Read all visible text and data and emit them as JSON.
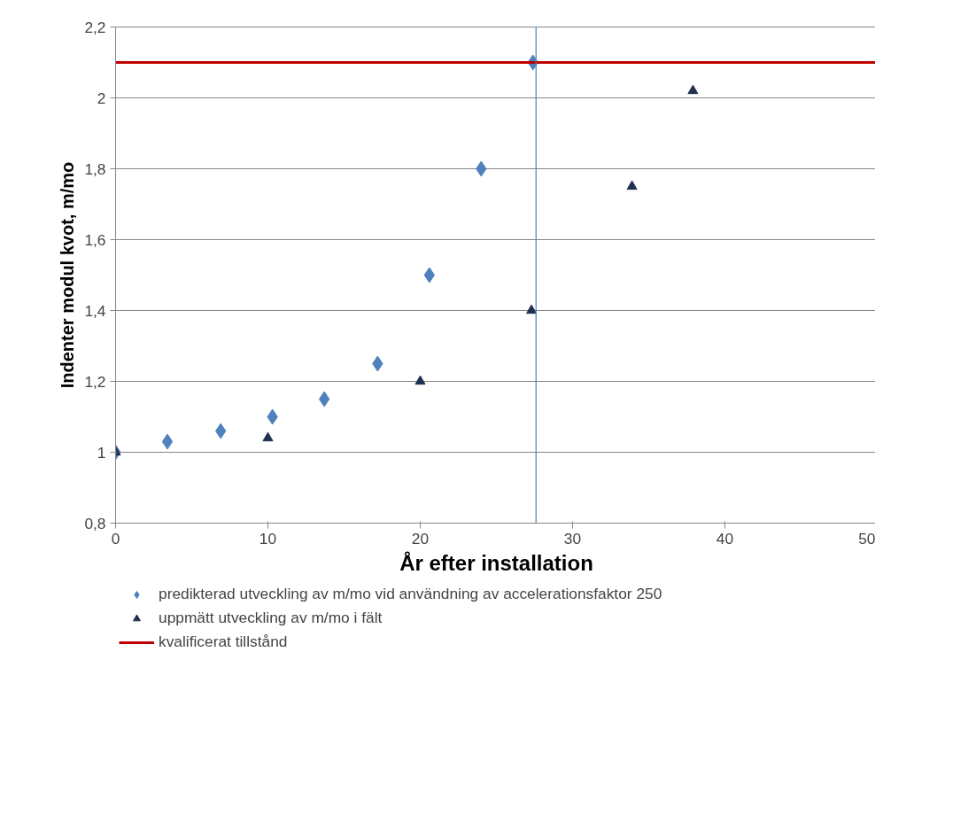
{
  "chart_data": {
    "type": "scatter",
    "xlabel": "År efter installation",
    "ylabel": "Indenter modul kvot, m/mo",
    "xlim": [
      0,
      50
    ],
    "xticks": [
      0,
      10,
      20,
      30,
      40,
      50
    ],
    "ylim": [
      0.8,
      2.2
    ],
    "yticks": [
      {
        "value": 0.8,
        "label": "0,8"
      },
      1,
      {
        "value": 1.2,
        "label": "1,2"
      },
      {
        "value": 1.4,
        "label": "1,4"
      },
      {
        "value": 1.6,
        "label": "1,6"
      },
      {
        "value": 1.8,
        "label": "1,8"
      },
      2,
      {
        "value": 2.2,
        "label": "2,2"
      }
    ],
    "grid": "y",
    "legend": "bottom",
    "series": [
      {
        "name": "predikterad utveckling av m/mo vid användning av accelerationsfaktor 250",
        "color": "#4f81bd",
        "marker": "diamond",
        "x": [
          0,
          3.4,
          6.9,
          10.3,
          13.7,
          17.2,
          20.6,
          24.0,
          27.4
        ],
        "values": [
          1.0,
          1.03,
          1.06,
          1.1,
          1.15,
          1.25,
          1.5,
          1.8,
          2.1
        ]
      },
      {
        "name": "uppmätt utveckling av m/mo i fält",
        "color": "#1f3050",
        "marker": "triangle",
        "x": [
          0,
          10.0,
          20.0,
          27.3,
          33.9,
          37.9
        ],
        "values": [
          1.0,
          1.04,
          1.2,
          1.4,
          1.75,
          2.02
        ]
      },
      {
        "name": "kvalificerat tillstånd",
        "type": "line",
        "color": "#c00000",
        "marker": "none",
        "x": [
          0,
          50
        ],
        "values": [
          2.1,
          2.1
        ]
      }
    ],
    "ref_lines": [
      {
        "axis": "x",
        "value": 27.6,
        "color": "#4f81bd"
      }
    ]
  }
}
